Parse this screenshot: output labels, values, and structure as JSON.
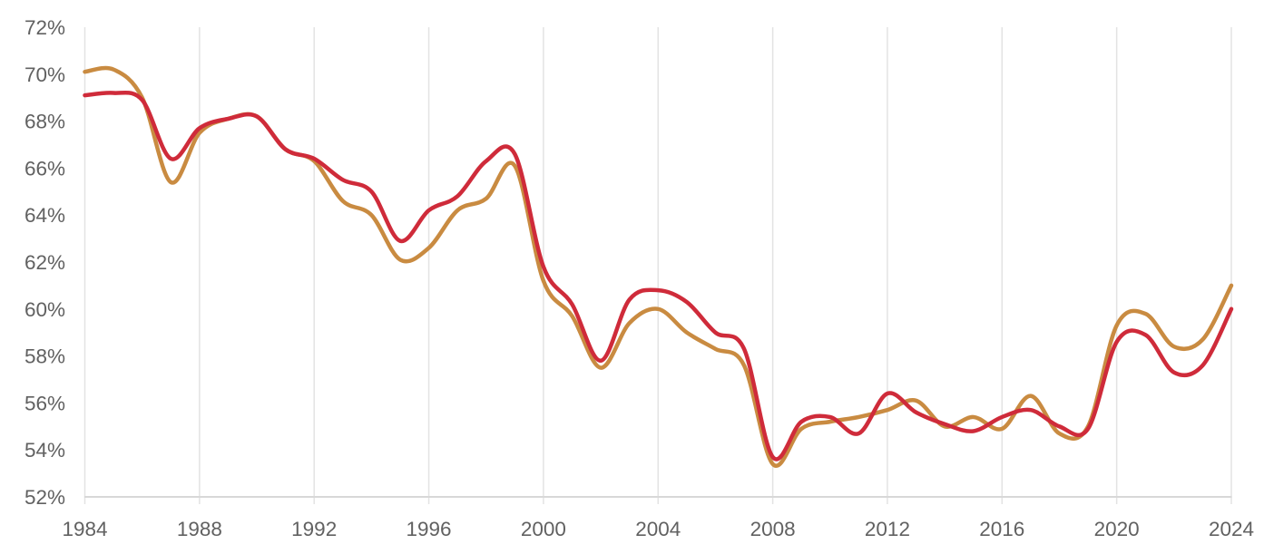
{
  "chart_data": {
    "type": "line",
    "title": "",
    "xlabel": "",
    "ylabel": "",
    "legend": "none",
    "grid": "vertical-only",
    "xlim": [
      1984,
      2024
    ],
    "ylim": [
      52,
      72
    ],
    "x": [
      1984,
      1985,
      1986,
      1987,
      1988,
      1989,
      1990,
      1991,
      1992,
      1993,
      1994,
      1995,
      1996,
      1997,
      1998,
      1999,
      2000,
      2001,
      2002,
      2003,
      2004,
      2005,
      2006,
      2007,
      2008,
      2009,
      2010,
      2011,
      2012,
      2013,
      2014,
      2015,
      2016,
      2017,
      2018,
      2019,
      2020,
      2021,
      2022,
      2023,
      2024
    ],
    "series": [
      {
        "name": "orange",
        "color": "#c98b41",
        "values": [
          70.1,
          70.2,
          69.0,
          65.4,
          67.5,
          68.1,
          68.2,
          66.8,
          66.3,
          64.6,
          64.0,
          62.1,
          62.6,
          64.2,
          64.7,
          66.1,
          61.2,
          59.7,
          57.5,
          59.4,
          60.0,
          59.0,
          58.3,
          57.6,
          53.4,
          54.9,
          55.2,
          55.4,
          55.7,
          56.1,
          55.0,
          55.4,
          54.9,
          56.3,
          54.7,
          55.0,
          59.3,
          59.8,
          58.4,
          58.7,
          61.0
        ]
      },
      {
        "name": "red",
        "color": "#cf2b3a",
        "values": [
          69.1,
          69.2,
          68.9,
          66.4,
          67.7,
          68.1,
          68.2,
          66.8,
          66.4,
          65.5,
          65.0,
          62.9,
          64.2,
          64.8,
          66.3,
          66.6,
          61.8,
          60.2,
          57.8,
          60.4,
          60.8,
          60.3,
          59.0,
          58.3,
          53.7,
          55.2,
          55.4,
          54.7,
          56.4,
          55.6,
          55.1,
          54.8,
          55.4,
          55.7,
          55.0,
          54.9,
          58.6,
          58.9,
          57.3,
          57.6,
          60.0
        ]
      }
    ],
    "x_tick_labels": [
      "1984",
      "1988",
      "1992",
      "1996",
      "2000",
      "2004",
      "2008",
      "2012",
      "2016",
      "2020",
      "2024"
    ],
    "x_tick_years": [
      1984,
      1988,
      1992,
      1996,
      2000,
      2004,
      2008,
      2012,
      2016,
      2020,
      2024
    ],
    "y_tick_labels": [
      "72%",
      "70%",
      "68%",
      "66%",
      "64%",
      "62%",
      "60%",
      "58%",
      "56%",
      "54%",
      "52%"
    ],
    "y_tick_values": [
      72,
      70,
      68,
      66,
      64,
      62,
      60,
      58,
      56,
      54,
      52
    ]
  },
  "colors": {
    "background": "#ffffff",
    "gridline": "#e3e3e3",
    "axis_line": "#d8d8d8",
    "tick_text": "#616161"
  }
}
